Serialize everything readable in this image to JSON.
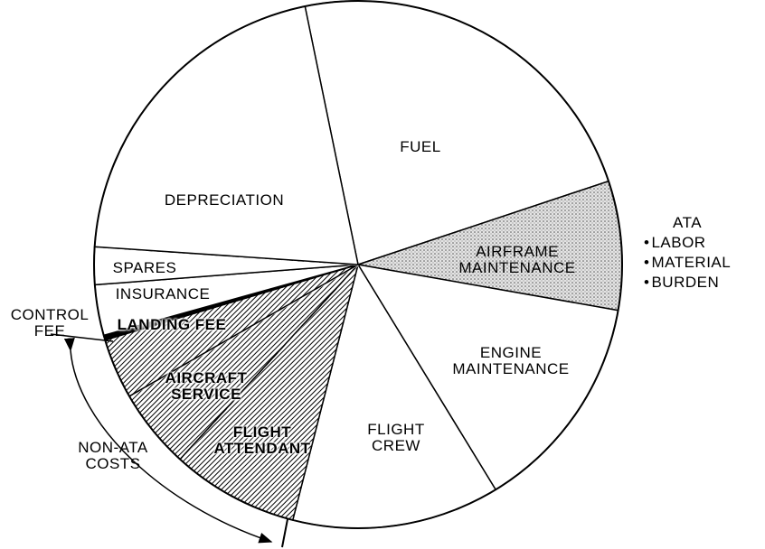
{
  "chart_data": {
    "type": "pie",
    "categories": [
      "FUEL",
      "AIRFRAME MAINTENANCE",
      "ENGINE MAINTENANCE",
      "FLIGHT CREW",
      "FLIGHT ATTENDANT",
      "AIRCRAFT SERVICE",
      "LANDING FEE",
      "CONTROL FEE",
      "INSURANCE",
      "SPARES",
      "DEPRECIATION"
    ],
    "values": [
      23.1,
      7.9,
      13.5,
      12.7,
      7.8,
      4.9,
      3.7,
      0.3,
      3.1,
      2.3,
      20.7
    ],
    "patterns": [
      "none",
      "stipple",
      "none",
      "none",
      "hatch",
      "hatch",
      "hatch",
      "solid",
      "none",
      "none",
      "none"
    ],
    "annotations": {
      "ata": {
        "title": "ATA",
        "items": [
          "LABOR",
          "MATERIAL",
          "BURDEN"
        ]
      },
      "non_ata": "NON-ATA COSTS"
    }
  }
}
